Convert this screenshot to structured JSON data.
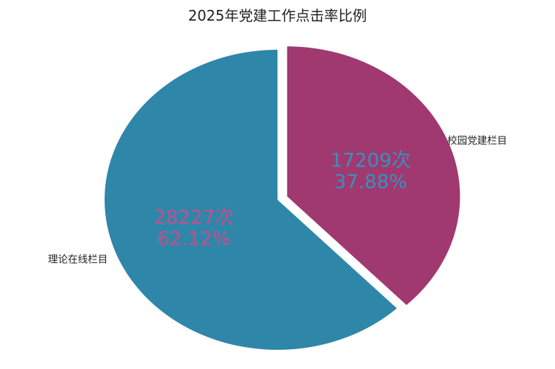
{
  "chart_data": {
    "type": "pie",
    "title": "2025年党建工作点击率比例",
    "slices": [
      {
        "label": "校园党建栏目",
        "value": 17209,
        "value_label": "17209次",
        "percent_label": "37.88%",
        "color": "#a0396f",
        "text_color": "#3a8fbf"
      },
      {
        "label": "理论在线栏目",
        "value": 28227,
        "value_label": "28227次",
        "percent_label": "62.12%",
        "color": "#2e87a9",
        "text_color": "#c44f8d"
      }
    ],
    "explode": [
      0.06,
      0
    ]
  }
}
